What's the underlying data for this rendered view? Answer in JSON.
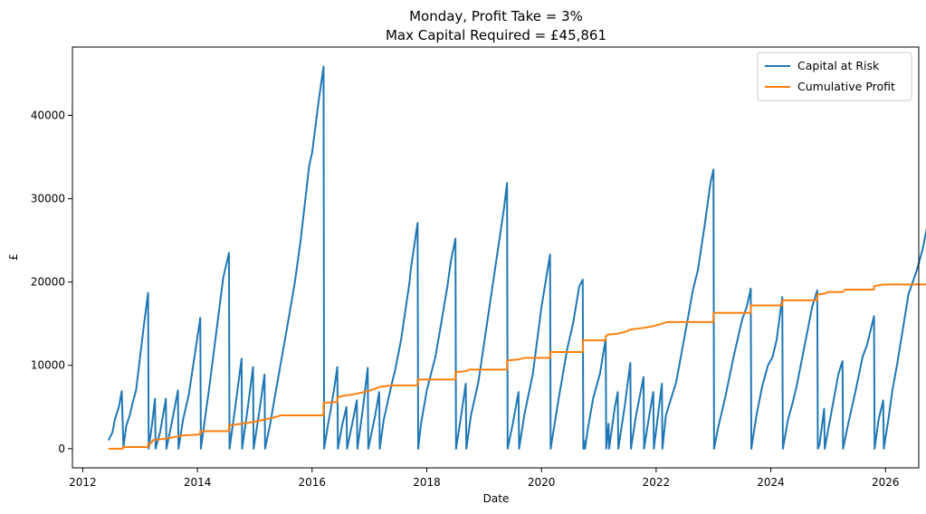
{
  "chart_data": {
    "type": "line",
    "title": "Monday, Profit Take = 3%",
    "subtitle": "Max Capital Required = £45,861",
    "xlabel": "Date",
    "ylabel": "£",
    "xlim": [
      2011.82,
      2026.58
    ],
    "ylim": [
      -2300,
      48200
    ],
    "x_ticks": [
      2012,
      2014,
      2016,
      2018,
      2020,
      2022,
      2024,
      2026
    ],
    "x_tick_labels": [
      "2012",
      "2014",
      "2016",
      "2018",
      "2020",
      "2022",
      "2024",
      "2026"
    ],
    "y_ticks": [
      0,
      10000,
      20000,
      30000,
      40000
    ],
    "y_tick_labels": [
      "0",
      "10000",
      "20000",
      "30000",
      "40000"
    ],
    "grid": false,
    "legend_position": "top-right",
    "series": [
      {
        "name": "Capital at Risk",
        "color": "#1f77b4",
        "points": [
          [
            2012.45,
            1000
          ],
          [
            2012.52,
            2000
          ],
          [
            2012.56,
            3500
          ],
          [
            2012.63,
            5000
          ],
          [
            2012.68,
            6900
          ],
          [
            2012.71,
            200
          ],
          [
            2012.76,
            2800
          ],
          [
            2012.82,
            4000
          ],
          [
            2012.87,
            5500
          ],
          [
            2012.93,
            7000
          ],
          [
            2013.0,
            11000
          ],
          [
            2013.07,
            15000
          ],
          [
            2013.14,
            18700
          ],
          [
            2013.15,
            0
          ],
          [
            2013.21,
            3000
          ],
          [
            2013.26,
            6000
          ],
          [
            2013.27,
            0
          ],
          [
            2013.35,
            2000
          ],
          [
            2013.45,
            6000
          ],
          [
            2013.46,
            0
          ],
          [
            2013.55,
            3000
          ],
          [
            2013.66,
            7000
          ],
          [
            2013.67,
            0
          ],
          [
            2013.75,
            3500
          ],
          [
            2013.85,
            6500
          ],
          [
            2013.97,
            12000
          ],
          [
            2014.05,
            15700
          ],
          [
            2014.06,
            0
          ],
          [
            2014.2,
            7000
          ],
          [
            2014.33,
            14000
          ],
          [
            2014.45,
            20500
          ],
          [
            2014.55,
            23500
          ],
          [
            2014.56,
            0
          ],
          [
            2014.66,
            5000
          ],
          [
            2014.77,
            10800
          ],
          [
            2014.78,
            0
          ],
          [
            2014.88,
            5000
          ],
          [
            2014.97,
            9800
          ],
          [
            2014.98,
            0
          ],
          [
            2015.07,
            4000
          ],
          [
            2015.17,
            8900
          ],
          [
            2015.18,
            0
          ],
          [
            2015.27,
            3000
          ],
          [
            2015.37,
            7000
          ],
          [
            2015.55,
            14000
          ],
          [
            2015.7,
            20000
          ],
          [
            2015.8,
            25000
          ],
          [
            2015.95,
            34000
          ],
          [
            2016.0,
            35500
          ],
          [
            2016.12,
            42000
          ],
          [
            2016.2,
            45861
          ],
          [
            2016.21,
            0
          ],
          [
            2016.28,
            3000
          ],
          [
            2016.32,
            4500
          ],
          [
            2016.38,
            7000
          ],
          [
            2016.44,
            9800
          ],
          [
            2016.45,
            0
          ],
          [
            2016.53,
            3000
          ],
          [
            2016.6,
            5000
          ],
          [
            2016.61,
            0
          ],
          [
            2016.7,
            3000
          ],
          [
            2016.78,
            5800
          ],
          [
            2016.79,
            0
          ],
          [
            2016.88,
            4500
          ],
          [
            2016.97,
            9700
          ],
          [
            2016.98,
            0
          ],
          [
            2017.1,
            4000
          ],
          [
            2017.17,
            6800
          ],
          [
            2017.18,
            0
          ],
          [
            2017.25,
            3500
          ],
          [
            2017.38,
            7500
          ],
          [
            2017.45,
            9500
          ],
          [
            2017.55,
            13000
          ],
          [
            2017.7,
            20000
          ],
          [
            2017.72,
            21500
          ],
          [
            2017.84,
            27100
          ],
          [
            2017.85,
            0
          ],
          [
            2017.9,
            3000
          ],
          [
            2018.0,
            7000
          ],
          [
            2018.15,
            11000
          ],
          [
            2018.25,
            15000
          ],
          [
            2018.36,
            19500
          ],
          [
            2018.42,
            22500
          ],
          [
            2018.5,
            25200
          ],
          [
            2018.51,
            0
          ],
          [
            2018.6,
            4000
          ],
          [
            2018.68,
            7800
          ],
          [
            2018.69,
            0
          ],
          [
            2018.77,
            4000
          ],
          [
            2018.9,
            8000
          ],
          [
            2019.05,
            15000
          ],
          [
            2019.2,
            22000
          ],
          [
            2019.35,
            29000
          ],
          [
            2019.4,
            31900
          ],
          [
            2019.41,
            0
          ],
          [
            2019.5,
            3000
          ],
          [
            2019.6,
            6800
          ],
          [
            2019.61,
            0
          ],
          [
            2019.7,
            4000
          ],
          [
            2019.85,
            9000
          ],
          [
            2020.0,
            17000
          ],
          [
            2020.15,
            23300
          ],
          [
            2020.16,
            0
          ],
          [
            2020.3,
            6000
          ],
          [
            2020.45,
            12000
          ],
          [
            2020.55,
            15000
          ],
          [
            2020.66,
            19500
          ],
          [
            2020.72,
            20300
          ],
          [
            2020.73,
            0
          ],
          [
            2020.74,
            1000
          ],
          [
            2020.76,
            0
          ],
          [
            2020.8,
            2000
          ],
          [
            2020.9,
            6000
          ],
          [
            2021.02,
            9000
          ],
          [
            2021.12,
            13200
          ],
          [
            2021.13,
            0
          ],
          [
            2021.17,
            3000
          ],
          [
            2021.18,
            0
          ],
          [
            2021.28,
            5000
          ],
          [
            2021.33,
            6800
          ],
          [
            2021.34,
            0
          ],
          [
            2021.45,
            5000
          ],
          [
            2021.55,
            10300
          ],
          [
            2021.56,
            0
          ],
          [
            2021.65,
            4000
          ],
          [
            2021.78,
            8600
          ],
          [
            2021.79,
            0
          ],
          [
            2021.88,
            4000
          ],
          [
            2021.95,
            6800
          ],
          [
            2021.96,
            0
          ],
          [
            2022.05,
            5000
          ],
          [
            2022.1,
            7800
          ],
          [
            2022.11,
            0
          ],
          [
            2022.17,
            4000
          ],
          [
            2022.26,
            6000
          ],
          [
            2022.35,
            8000
          ],
          [
            2022.55,
            15500
          ],
          [
            2022.64,
            19000
          ],
          [
            2022.73,
            21500
          ],
          [
            2022.85,
            27000
          ],
          [
            2022.95,
            32000
          ],
          [
            2023.0,
            33500
          ],
          [
            2023.01,
            0
          ],
          [
            2023.08,
            2500
          ],
          [
            2023.2,
            6000
          ],
          [
            2023.35,
            11000
          ],
          [
            2023.5,
            15500
          ],
          [
            2023.58,
            17000
          ],
          [
            2023.65,
            19200
          ],
          [
            2023.66,
            0
          ],
          [
            2023.75,
            4000
          ],
          [
            2023.85,
            7500
          ],
          [
            2023.95,
            10000
          ],
          [
            2024.03,
            11000
          ],
          [
            2024.1,
            13000
          ],
          [
            2024.2,
            18200
          ],
          [
            2024.21,
            0
          ],
          [
            2024.3,
            3500
          ],
          [
            2024.38,
            5500
          ],
          [
            2024.45,
            7500
          ],
          [
            2024.55,
            11000
          ],
          [
            2024.65,
            14500
          ],
          [
            2024.72,
            17000
          ],
          [
            2024.81,
            19000
          ],
          [
            2024.82,
            0
          ],
          [
            2024.85,
            500
          ],
          [
            2024.93,
            4800
          ],
          [
            2024.94,
            0
          ],
          [
            2025.02,
            3000
          ],
          [
            2025.1,
            6000
          ],
          [
            2025.18,
            9000
          ],
          [
            2025.25,
            10500
          ],
          [
            2025.26,
            0
          ],
          [
            2025.35,
            3000
          ],
          [
            2025.48,
            7000
          ],
          [
            2025.6,
            11000
          ],
          [
            2025.68,
            12500
          ],
          [
            2025.8,
            15900
          ],
          [
            2025.81,
            0
          ],
          [
            2025.88,
            3500
          ],
          [
            2025.96,
            5800
          ],
          [
            2025.97,
            0
          ],
          [
            2026.05,
            3500
          ],
          [
            2026.12,
            7000
          ],
          [
            2026.2,
            10000
          ],
          [
            2026.4,
            18500
          ],
          [
            2026.55,
            21500
          ],
          [
            2026.65,
            24000
          ],
          [
            2026.74,
            27200
          ],
          [
            2026.75,
            0
          ],
          [
            2026.82,
            3500
          ],
          [
            2026.9,
            4800
          ],
          [
            2026.95,
            5800
          ],
          [
            2027.0,
            7400
          ],
          [
            2027.01,
            0
          ],
          [
            2027.1,
            4900
          ],
          [
            2027.11,
            0
          ],
          [
            2027.2,
            5000
          ]
        ]
      },
      {
        "name": "Cumulative Profit",
        "color": "#ff7f0e",
        "points": [
          [
            2012.45,
            0
          ],
          [
            2012.7,
            0
          ],
          [
            2012.7,
            200
          ],
          [
            2013.14,
            200
          ],
          [
            2013.14,
            600
          ],
          [
            2013.2,
            700
          ],
          [
            2013.22,
            1000
          ],
          [
            2013.3,
            1100
          ],
          [
            2013.45,
            1200
          ],
          [
            2013.6,
            1400
          ],
          [
            2013.75,
            1600
          ],
          [
            2014.05,
            1700
          ],
          [
            2014.05,
            2100
          ],
          [
            2014.55,
            2100
          ],
          [
            2014.55,
            2800
          ],
          [
            2014.77,
            3000
          ],
          [
            2014.97,
            3200
          ],
          [
            2015.17,
            3500
          ],
          [
            2015.37,
            3800
          ],
          [
            2015.45,
            4000
          ],
          [
            2016.2,
            4000
          ],
          [
            2016.2,
            5500
          ],
          [
            2016.44,
            5600
          ],
          [
            2016.44,
            6200
          ],
          [
            2016.6,
            6400
          ],
          [
            2016.78,
            6600
          ],
          [
            2016.97,
            6900
          ],
          [
            2017.1,
            7200
          ],
          [
            2017.17,
            7400
          ],
          [
            2017.38,
            7600
          ],
          [
            2017.84,
            7600
          ],
          [
            2017.84,
            8300
          ],
          [
            2018.5,
            8300
          ],
          [
            2018.5,
            9200
          ],
          [
            2018.68,
            9300
          ],
          [
            2018.75,
            9500
          ],
          [
            2019.4,
            9500
          ],
          [
            2019.4,
            10600
          ],
          [
            2019.6,
            10700
          ],
          [
            2019.7,
            10900
          ],
          [
            2020.15,
            10900
          ],
          [
            2020.15,
            11600
          ],
          [
            2020.72,
            11600
          ],
          [
            2020.72,
            13000
          ],
          [
            2021.12,
            13000
          ],
          [
            2021.12,
            13500
          ],
          [
            2021.17,
            13700
          ],
          [
            2021.33,
            13800
          ],
          [
            2021.45,
            14000
          ],
          [
            2021.55,
            14300
          ],
          [
            2021.78,
            14500
          ],
          [
            2021.95,
            14700
          ],
          [
            2022.1,
            15000
          ],
          [
            2022.2,
            15200
          ],
          [
            2023.0,
            15200
          ],
          [
            2023.0,
            16300
          ],
          [
            2023.65,
            16300
          ],
          [
            2023.65,
            17200
          ],
          [
            2024.2,
            17200
          ],
          [
            2024.2,
            17800
          ],
          [
            2024.81,
            17800
          ],
          [
            2024.81,
            18500
          ],
          [
            2024.93,
            18600
          ],
          [
            2025.0,
            18800
          ],
          [
            2025.25,
            18800
          ],
          [
            2025.3,
            19100
          ],
          [
            2025.8,
            19100
          ],
          [
            2025.8,
            19500
          ],
          [
            2025.96,
            19700
          ],
          [
            2026.74,
            19700
          ],
          [
            2026.74,
            20400
          ],
          [
            2027.0,
            20700
          ],
          [
            2027.2,
            20900
          ]
        ]
      }
    ]
  }
}
